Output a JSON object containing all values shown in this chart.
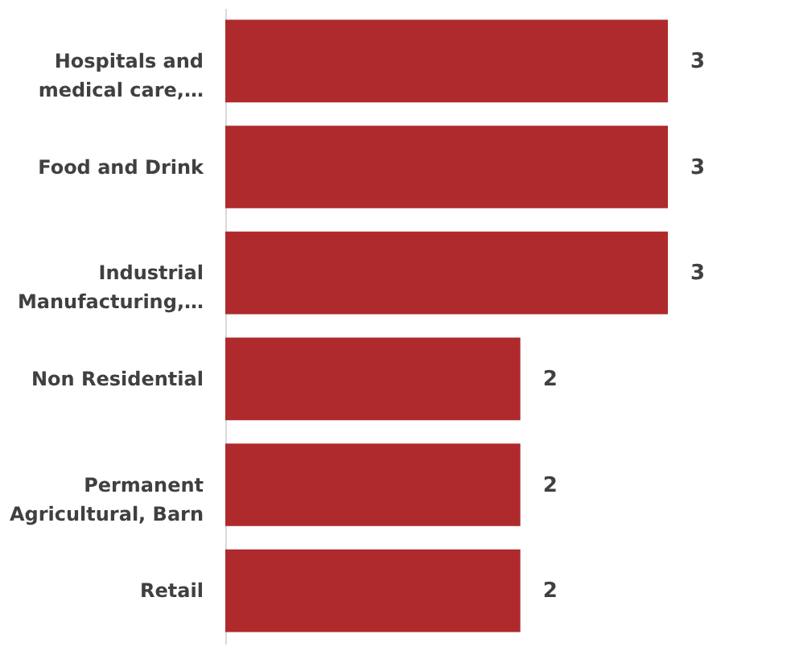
{
  "chart_data": {
    "type": "bar",
    "orientation": "horizontal",
    "categories": [
      "Hospitals and medical care,…",
      "Food and Drink",
      "Industrial Manufacturing,…",
      "Non Residential",
      "Permanent Agricultural, Barn",
      "Retail"
    ],
    "values": [
      3,
      3,
      3,
      2,
      2,
      2
    ],
    "color": "#ae2a2c",
    "data_labels": true,
    "grid": false
  }
}
